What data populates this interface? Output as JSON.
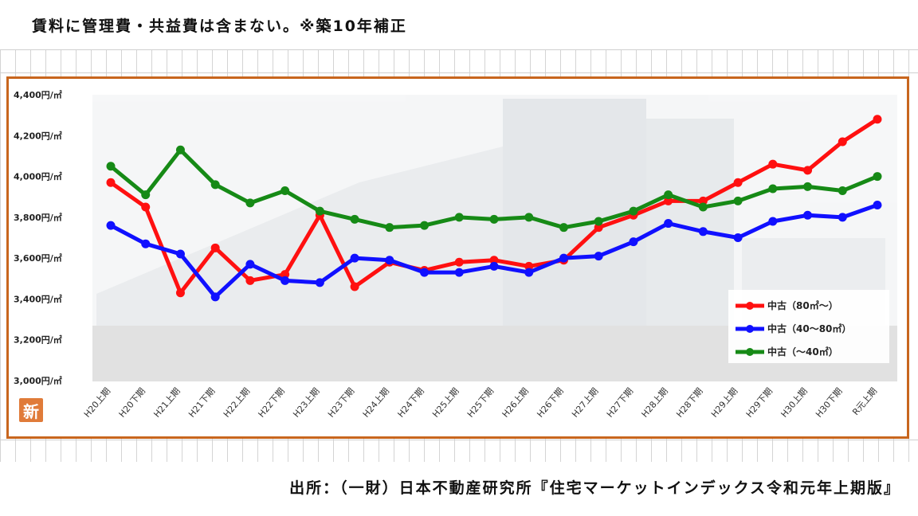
{
  "header": {
    "note": "賃料に管理費・共益費は含まない。※築10年補正"
  },
  "footer": {
    "source": "出所：（一財）日本不動産研究所『住宅マーケットインデックス令和元年上期版』"
  },
  "badge": {
    "label": "新"
  },
  "colors": {
    "frame": "#c8661e",
    "red": "#ff1010",
    "blue": "#1010ff",
    "green": "#168a16"
  },
  "chart_data": {
    "type": "line",
    "categories": [
      "H20上期",
      "H20下期",
      "H21上期",
      "H21下期",
      "H22上期",
      "H22下期",
      "H23上期",
      "H23下期",
      "H24上期",
      "H24下期",
      "H25上期",
      "H25下期",
      "H26上期",
      "H26下期",
      "H27上期",
      "H27下期",
      "H28上期",
      "H28下期",
      "H29上期",
      "H29下期",
      "H30上期",
      "H30下期",
      "R元上期"
    ],
    "y_ticks": [
      "4,400円/㎡",
      "4,200円/㎡",
      "4,000円/㎡",
      "3,800円/㎡",
      "3,600円/㎡",
      "3,400円/㎡",
      "3,200円/㎡",
      "3,000円/㎡"
    ],
    "ylim": [
      3000,
      4400
    ],
    "series": [
      {
        "name": "中古（80㎡～）",
        "color": "#ff1010",
        "values": [
          3970,
          3850,
          3430,
          3650,
          3490,
          3520,
          3810,
          3460,
          3580,
          3540,
          3580,
          3590,
          3560,
          3590,
          3750,
          3810,
          3880,
          3880,
          3970,
          4060,
          4030,
          4170,
          4280
        ]
      },
      {
        "name": "中古（40～80㎡）",
        "color": "#1010ff",
        "values": [
          3760,
          3670,
          3620,
          3410,
          3570,
          3490,
          3480,
          3600,
          3590,
          3530,
          3530,
          3560,
          3530,
          3600,
          3610,
          3680,
          3770,
          3730,
          3700,
          3780,
          3810,
          3800,
          3860
        ]
      },
      {
        "name": "中古（～40㎡）",
        "color": "#168a16",
        "values": [
          4050,
          3910,
          4130,
          3960,
          3870,
          3930,
          3830,
          3790,
          3750,
          3760,
          3800,
          3790,
          3800,
          3750,
          3780,
          3830,
          3910,
          3850,
          3880,
          3940,
          3950,
          3930,
          4000
        ]
      }
    ],
    "legend_position": "bottom-right",
    "grid": false
  }
}
